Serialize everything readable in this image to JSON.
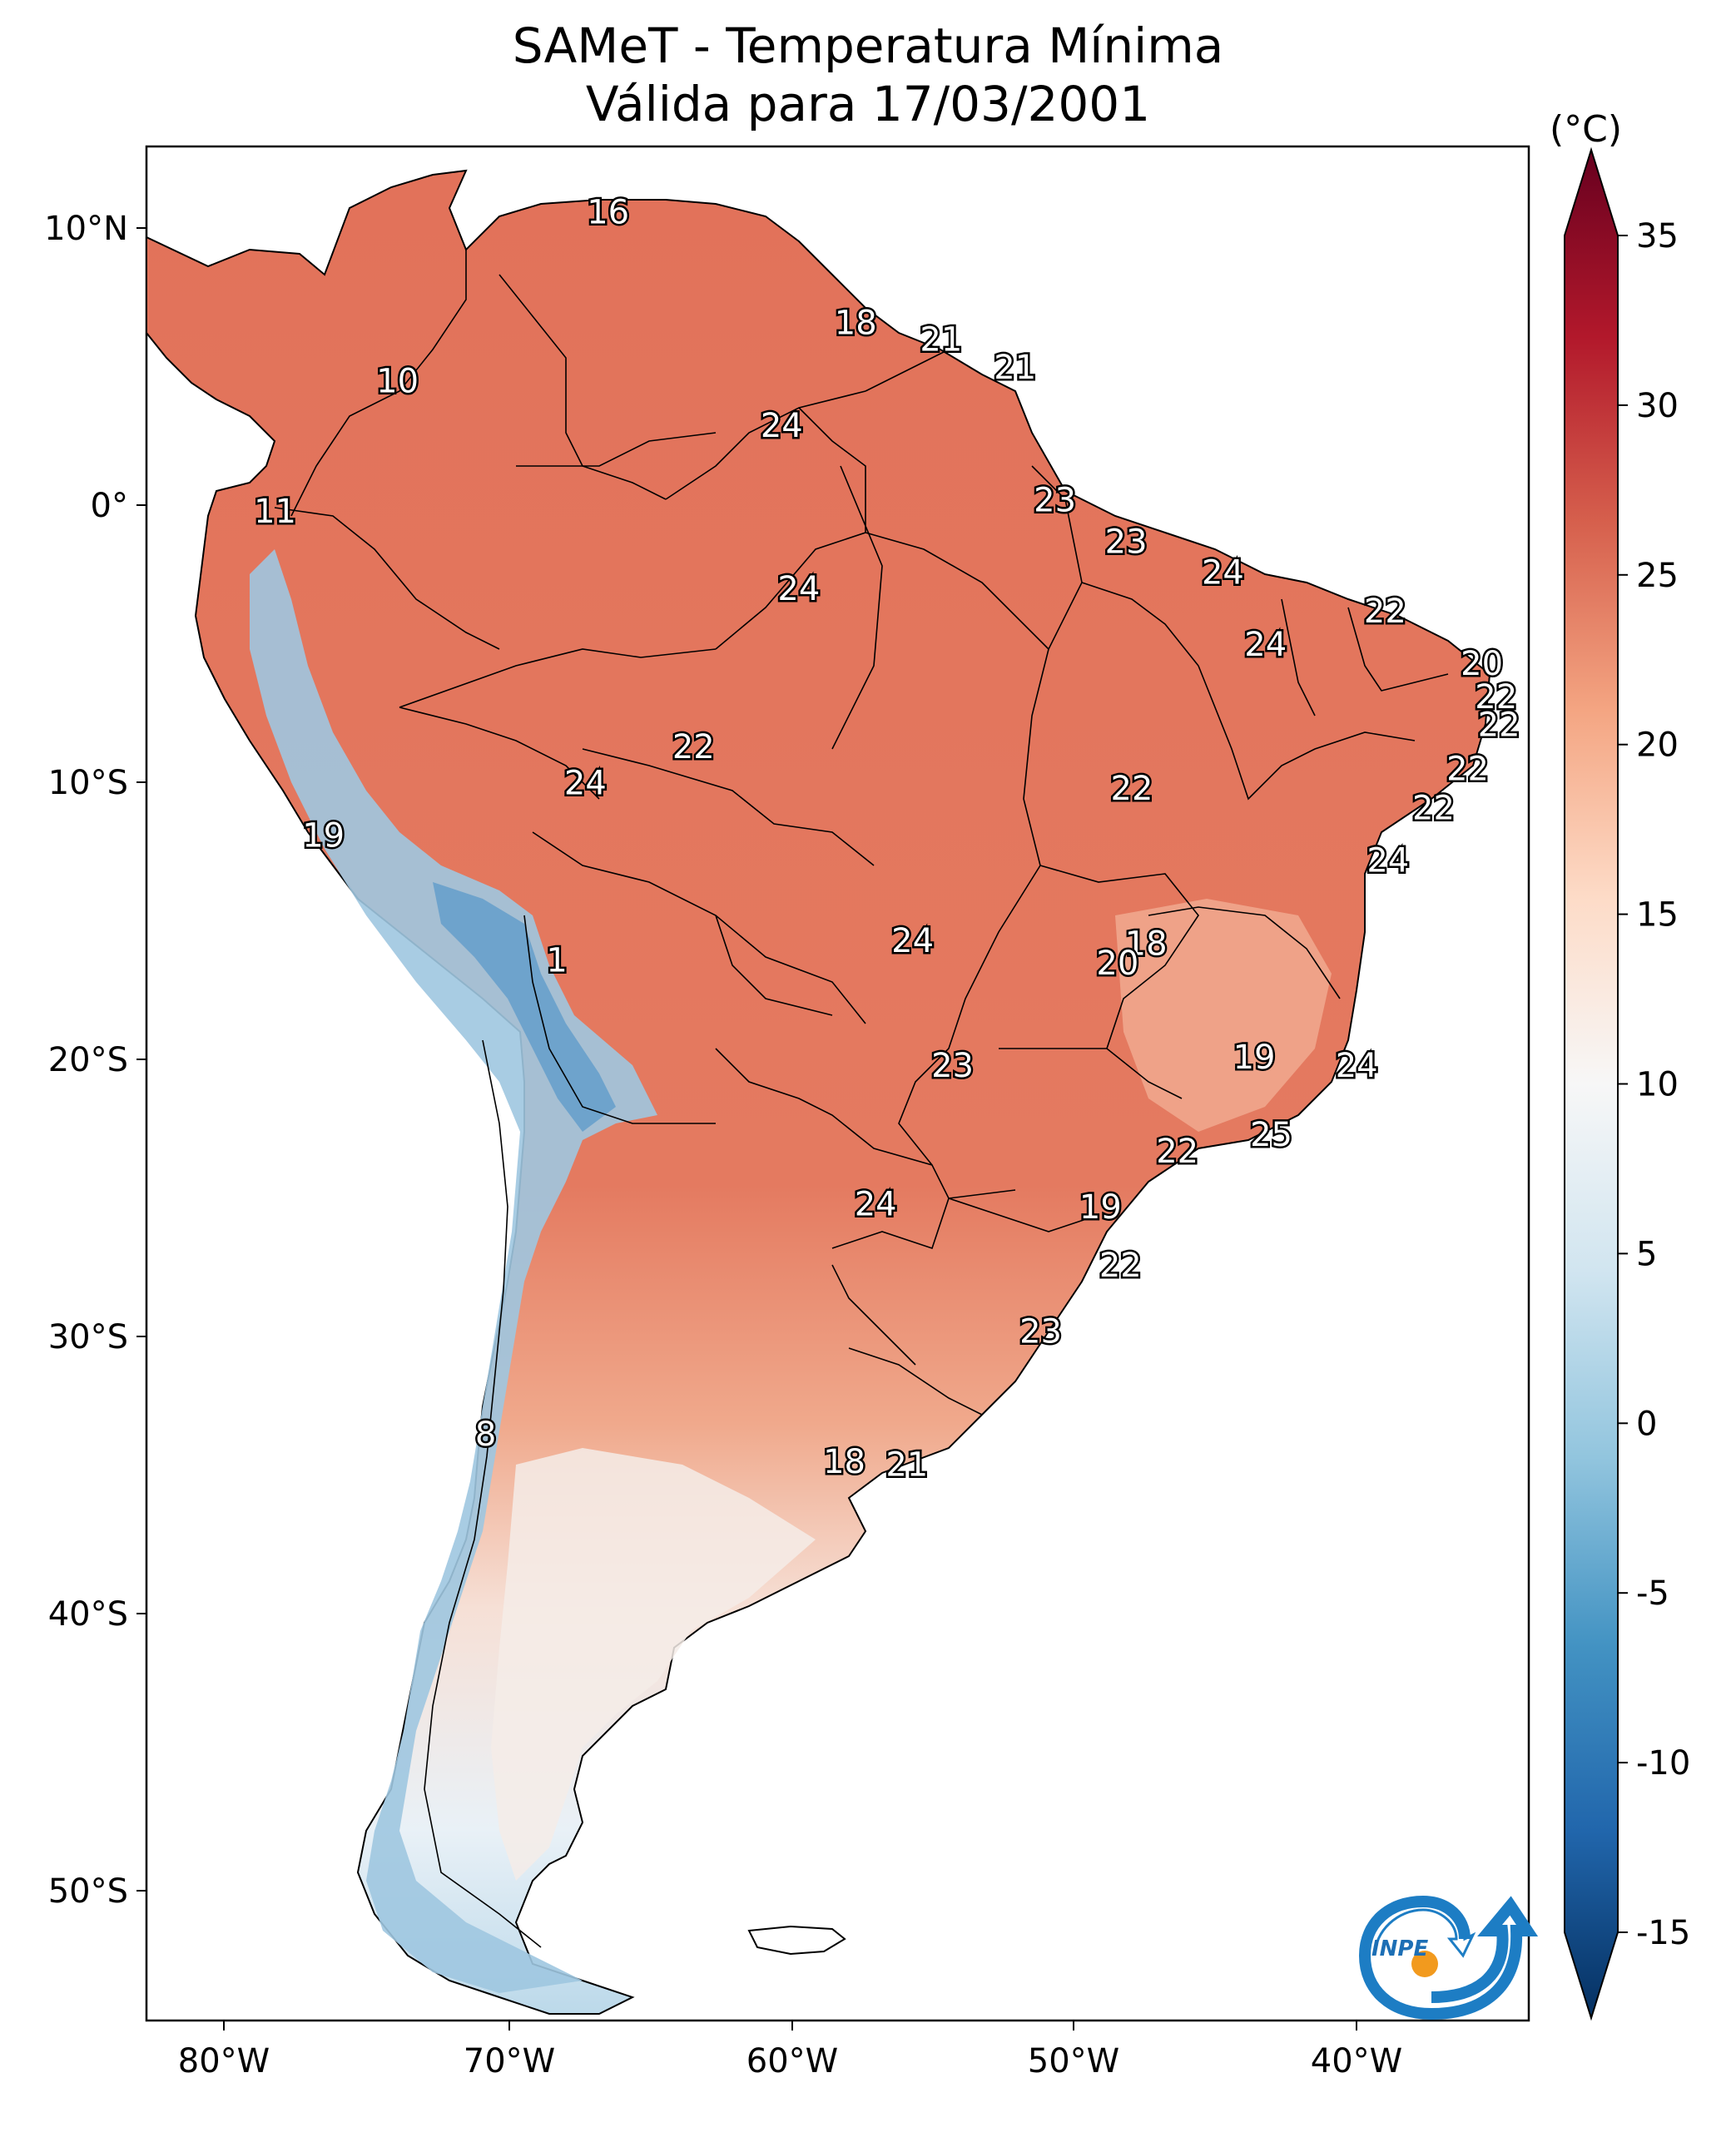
{
  "title": {
    "line1": "SAMeT - Temperatura Mínima",
    "line2": "Válida para 17/03/2001"
  },
  "colorbar": {
    "unit": "(°C)",
    "ticks": [
      "35",
      "30",
      "25",
      "20",
      "15",
      "10",
      "5",
      "0",
      "-5",
      "-10",
      "-15"
    ],
    "range": [
      -15,
      35
    ]
  },
  "axes": {
    "lon_ticks": [
      "80°W",
      "70°W",
      "60°W",
      "50°W",
      "40°W"
    ],
    "lat_ticks": [
      "10°N",
      "0°",
      "10°S",
      "20°S",
      "30°S",
      "40°S",
      "50°S"
    ]
  },
  "map_labels": [
    {
      "text": "16",
      "lon": -66.5,
      "lat": 10.5
    },
    {
      "text": "18",
      "lon": -57.8,
      "lat": 6.5
    },
    {
      "text": "21",
      "lon": -54.8,
      "lat": 5.9
    },
    {
      "text": "21",
      "lon": -52.2,
      "lat": 4.9
    },
    {
      "text": "10",
      "lon": -73.9,
      "lat": 4.4
    },
    {
      "text": "24",
      "lon": -60.4,
      "lat": 2.8
    },
    {
      "text": "11",
      "lon": -78.2,
      "lat": -0.3
    },
    {
      "text": "23",
      "lon": -50.8,
      "lat": 0.1
    },
    {
      "text": "23",
      "lon": -48.3,
      "lat": -1.4
    },
    {
      "text": "24",
      "lon": -59.8,
      "lat": -3.1
    },
    {
      "text": "24",
      "lon": -44.9,
      "lat": -2.5
    },
    {
      "text": "22",
      "lon": -39.2,
      "lat": -3.9
    },
    {
      "text": "24",
      "lon": -43.4,
      "lat": -5.1
    },
    {
      "text": "20",
      "lon": -35.8,
      "lat": -5.8
    },
    {
      "text": "22",
      "lon": -35.3,
      "lat": -7.0
    },
    {
      "text": "22",
      "lon": -35.2,
      "lat": -8.0
    },
    {
      "text": "22",
      "lon": -63.5,
      "lat": -8.8
    },
    {
      "text": "24",
      "lon": -67.3,
      "lat": -10.1
    },
    {
      "text": "22",
      "lon": -48.1,
      "lat": -10.3
    },
    {
      "text": "22",
      "lon": -36.3,
      "lat": -9.6
    },
    {
      "text": "22",
      "lon": -37.5,
      "lat": -11.0
    },
    {
      "text": "19",
      "lon": -76.5,
      "lat": -12.0
    },
    {
      "text": "24",
      "lon": -39.1,
      "lat": -12.9
    },
    {
      "text": "24",
      "lon": -55.8,
      "lat": -15.8
    },
    {
      "text": "18",
      "lon": -47.6,
      "lat": -15.9
    },
    {
      "text": "20",
      "lon": -48.6,
      "lat": -16.6
    },
    {
      "text": "1",
      "lon": -68.3,
      "lat": -16.5
    },
    {
      "text": "19",
      "lon": -43.8,
      "lat": -20.0
    },
    {
      "text": "23",
      "lon": -54.4,
      "lat": -20.3
    },
    {
      "text": "24",
      "lon": -40.2,
      "lat": -20.3
    },
    {
      "text": "25",
      "lon": -43.2,
      "lat": -22.8
    },
    {
      "text": "22",
      "lon": -46.5,
      "lat": -23.4
    },
    {
      "text": "19",
      "lon": -49.2,
      "lat": -25.4
    },
    {
      "text": "24",
      "lon": -57.1,
      "lat": -25.3
    },
    {
      "text": "22",
      "lon": -48.5,
      "lat": -27.5
    },
    {
      "text": "23",
      "lon": -51.3,
      "lat": -29.9
    },
    {
      "text": "8",
      "lon": -70.8,
      "lat": -33.6
    },
    {
      "text": "18",
      "lon": -58.2,
      "lat": -34.6
    },
    {
      "text": "21",
      "lon": -56.0,
      "lat": -34.7
    }
  ],
  "logo": {
    "text": "INPE"
  }
}
